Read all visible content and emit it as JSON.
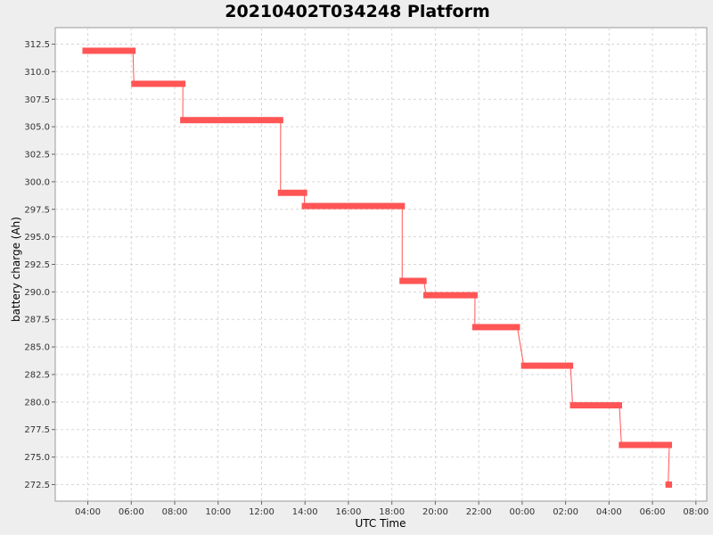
{
  "chart_data": {
    "type": "line",
    "title": "20210402T034248 Platform",
    "xlabel": "UTC Time",
    "ylabel": "battery charge (Ah)",
    "x_ticks": [
      "04:00",
      "06:00",
      "08:00",
      "10:00",
      "12:00",
      "14:00",
      "16:00",
      "18:00",
      "20:00",
      "22:00",
      "00:00",
      "02:00",
      "04:00",
      "06:00",
      "08:00"
    ],
    "x_range_hours": [
      2.5,
      32.5
    ],
    "y_ticks": [
      "272.5",
      "275.0",
      "277.5",
      "280.0",
      "282.5",
      "285.0",
      "287.5",
      "290.0",
      "292.5",
      "295.0",
      "297.5",
      "300.0",
      "302.5",
      "305.0",
      "307.5",
      "310.0",
      "312.5"
    ],
    "ylim": [
      271.0,
      314.0
    ],
    "grid": true,
    "series": [
      {
        "color": "#ff5555",
        "segments": [
          {
            "x_start": 3.75,
            "x_end": 6.2,
            "y": 311.9
          },
          {
            "x_start": 6.0,
            "x_end": 8.5,
            "y": 308.9
          },
          {
            "x_start": 8.25,
            "x_end": 13.0,
            "y": 305.6
          },
          {
            "x_start": 12.75,
            "x_end": 14.1,
            "y": 299.0
          },
          {
            "x_start": 13.85,
            "x_end": 18.6,
            "y": 297.8
          },
          {
            "x_start": 18.35,
            "x_end": 19.6,
            "y": 291.0
          },
          {
            "x_start": 19.45,
            "x_end": 21.95,
            "y": 289.7
          },
          {
            "x_start": 21.7,
            "x_end": 23.9,
            "y": 286.8
          },
          {
            "x_start": 23.95,
            "x_end": 26.35,
            "y": 283.3
          },
          {
            "x_start": 26.2,
            "x_end": 28.6,
            "y": 279.7
          },
          {
            "x_start": 28.45,
            "x_end": 30.9,
            "y": 276.1
          },
          {
            "x_start": 30.6,
            "x_end": 30.9,
            "y": 272.5
          }
        ]
      }
    ]
  }
}
